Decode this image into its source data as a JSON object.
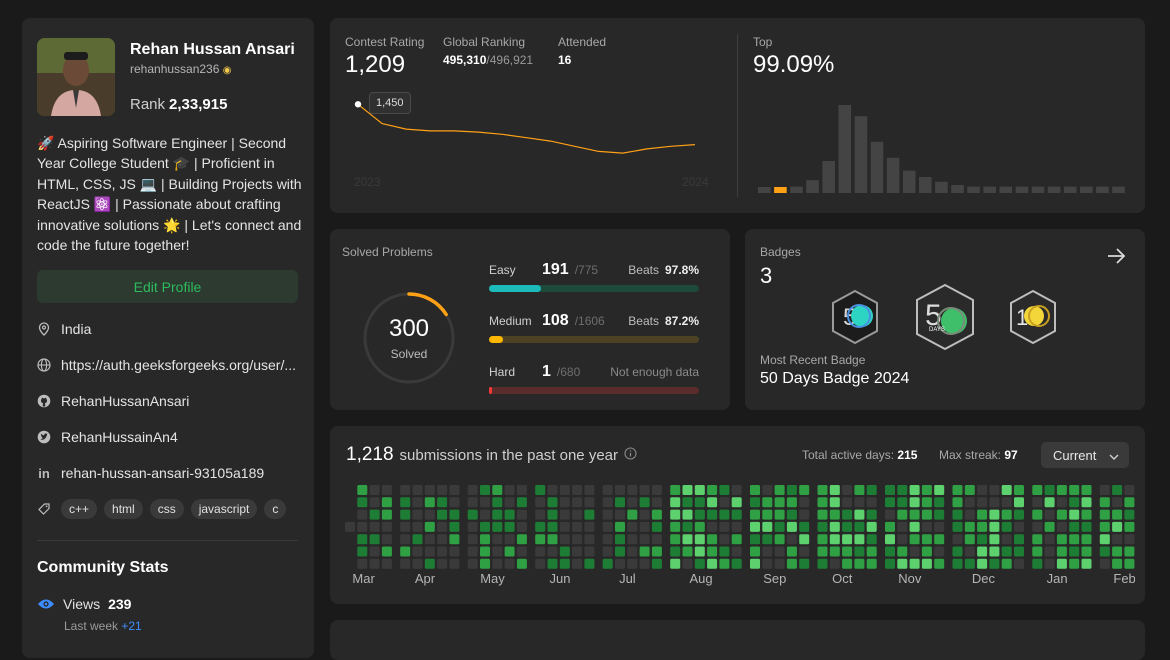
{
  "profile": {
    "name": "Rehan Hussan Ansari",
    "username": "rehanhussan236",
    "rank_label": "Rank",
    "rank_value": "2,33,915",
    "bio": "🚀 Aspiring Software Engineer | Second Year College Student 🎓 | Proficient in HTML, CSS, JS 💻 | Building Projects with ReactJS ⚛️ | Passionate about crafting innovative solutions 🌟 | Let's connect and code the future together!",
    "edit_label": "Edit Profile",
    "location": "India",
    "website": "https://auth.geeksforgeeks.org/user/...",
    "github": "RehanHussanAnsari",
    "twitter": "RehanHussainAn4",
    "linkedin": "rehan-hussan-ansari-93105a189",
    "skills": [
      "c++",
      "html",
      "css",
      "javascript",
      "c"
    ]
  },
  "community": {
    "title": "Community Stats",
    "views_label": "Views",
    "views_value": "239",
    "last_week_label": "Last week",
    "last_week_value": "+21"
  },
  "contest": {
    "rating_label": "Contest Rating",
    "rating_value": "1,209",
    "global_label": "Global Ranking",
    "global_rank": "495,310",
    "global_total": "/496,921",
    "attended_label": "Attended",
    "attended_value": "16",
    "top_label": "Top",
    "top_value": "99.09%",
    "tooltip": "1,450",
    "year_start": "2023",
    "year_end": "2024",
    "histogram": [
      2,
      2,
      4,
      8,
      20,
      55,
      48,
      32,
      22,
      14,
      10,
      7,
      5,
      4,
      4,
      4,
      4,
      4,
      4,
      4,
      4,
      4,
      4
    ],
    "highlight_index": 1,
    "rating_line": [
      1450,
      1405,
      1392,
      1388,
      1388,
      1385,
      1380,
      1372,
      1364,
      1352,
      1340,
      1336,
      1346,
      1352,
      1356
    ]
  },
  "solved": {
    "title": "Solved Problems",
    "count": "300",
    "count_label": "Solved",
    "progress": 0.16,
    "easy": {
      "label": "Easy",
      "solved": "191",
      "total": "/775",
      "beats_label": "Beats",
      "beats": "97.8%",
      "fraction": 0.246
    },
    "medium": {
      "label": "Medium",
      "solved": "108",
      "total": "/1606",
      "beats_label": "Beats",
      "beats": "87.2%",
      "fraction": 0.067
    },
    "hard": {
      "label": "Hard",
      "solved": "1",
      "total": "/680",
      "note": "Not enough data",
      "fraction": 0.0015
    }
  },
  "badges": {
    "title": "Badges",
    "count": "3",
    "recent_label": "Most Recent Badge",
    "recent_name": "50 Days Badge 2024",
    "badge_small_labels": [
      "DAYS",
      "DAYS",
      "DAYS"
    ]
  },
  "submissions": {
    "count": "1,218",
    "label": "submissions in the past one year",
    "active_label": "Total active days:",
    "active_value": "215",
    "streak_label": "Max streak:",
    "streak_value": "97",
    "range_option": "Current",
    "months": [
      "Mar",
      "Apr",
      "May",
      "Jun",
      "Jul",
      "Aug",
      "Sep",
      "Oct",
      "Nov",
      "Dec",
      "Jan",
      "Feb"
    ]
  },
  "colors": {
    "easy": "#1cbaba",
    "medium": "#ffb700",
    "hard": "#f63737",
    "accent": "#ffa116",
    "green": "#2cbb5d"
  }
}
